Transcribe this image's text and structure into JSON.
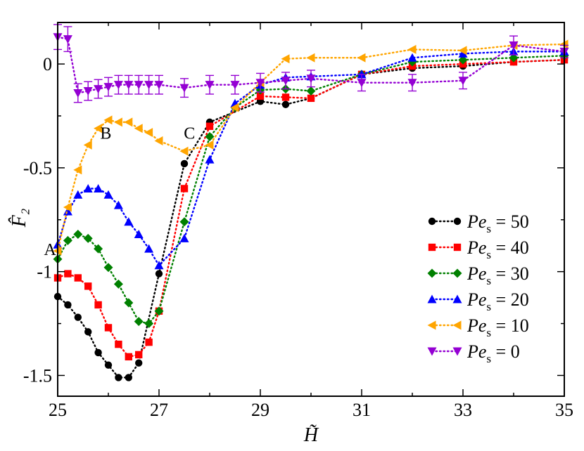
{
  "chart_data": {
    "type": "line",
    "title": "",
    "xlabel": "H̃",
    "ylabel": "F̂₂",
    "xlim": [
      25,
      35
    ],
    "ylim": [
      -1.6,
      0.2
    ],
    "x_ticks": [
      25,
      27,
      29,
      31,
      33,
      35
    ],
    "x_tick_labels": [
      "25",
      "27",
      "29",
      "31",
      "33",
      "35"
    ],
    "y_ticks": [
      0,
      -0.5,
      -1,
      -1.5
    ],
    "y_tick_labels": [
      "0",
      "-0.5",
      "-1",
      "-1.5"
    ],
    "annotations": [
      {
        "text": "A",
        "x": 24.85,
        "y": -0.92
      },
      {
        "text": "B",
        "x": 25.95,
        "y": -0.36
      },
      {
        "text": "C",
        "x": 27.6,
        "y": -0.36
      }
    ],
    "legend": {
      "position": "center-right",
      "prefix": "Pe",
      "subscript": "s"
    },
    "series": [
      {
        "name": "50",
        "label_eq": " = 50",
        "color": "#000000",
        "marker": "circle",
        "x": [
          25,
          25.2,
          25.4,
          25.6,
          25.8,
          26,
          26.2,
          26.4,
          26.6,
          27,
          27.5,
          28,
          29,
          29.5,
          30,
          31,
          32,
          33,
          34,
          35
        ],
        "y": [
          -1.12,
          -1.16,
          -1.22,
          -1.29,
          -1.39,
          -1.45,
          -1.51,
          -1.51,
          -1.44,
          -1.01,
          -0.48,
          -0.28,
          -0.18,
          -0.195,
          -0.165,
          -0.05,
          -0.02,
          -0.01,
          0.01,
          0.02
        ]
      },
      {
        "name": "40",
        "label_eq": " = 40",
        "color": "#ff0000",
        "marker": "square",
        "x": [
          25,
          25.2,
          25.4,
          25.6,
          25.8,
          26,
          26.2,
          26.4,
          26.6,
          26.8,
          27,
          27.5,
          28,
          29,
          29.5,
          30,
          31,
          32,
          33,
          34,
          35
        ],
        "y": [
          -1.03,
          -1.01,
          -1.03,
          -1.07,
          -1.16,
          -1.27,
          -1.35,
          -1.41,
          -1.4,
          -1.34,
          -1.19,
          -0.6,
          -0.3,
          -0.155,
          -0.16,
          -0.165,
          -0.05,
          -0.01,
          0.0,
          0.01,
          0.02
        ]
      },
      {
        "name": "30",
        "label_eq": " = 30",
        "color": "#008000",
        "marker": "diamond",
        "x": [
          25,
          25.2,
          25.4,
          25.6,
          25.8,
          26,
          26.2,
          26.4,
          26.6,
          26.8,
          27,
          27.5,
          28,
          28.5,
          29,
          29.5,
          30,
          31,
          32,
          33,
          34,
          35
        ],
        "y": [
          -0.94,
          -0.85,
          -0.82,
          -0.84,
          -0.89,
          -0.98,
          -1.06,
          -1.15,
          -1.24,
          -1.25,
          -1.19,
          -0.76,
          -0.35,
          -0.21,
          -0.125,
          -0.12,
          -0.13,
          -0.05,
          0.01,
          0.02,
          0.03,
          0.04
        ]
      },
      {
        "name": "20",
        "label_eq": " = 20",
        "color": "#0000ff",
        "marker": "triangle-up",
        "x": [
          25,
          25.2,
          25.4,
          25.6,
          25.8,
          26,
          26.2,
          26.4,
          26.6,
          26.8,
          27,
          27.5,
          28,
          28.5,
          29,
          29.5,
          30,
          31,
          32,
          33,
          34,
          35
        ],
        "y": [
          -0.87,
          -0.71,
          -0.63,
          -0.6,
          -0.6,
          -0.63,
          -0.68,
          -0.76,
          -0.82,
          -0.89,
          -0.97,
          -0.84,
          -0.46,
          -0.19,
          -0.1,
          -0.065,
          -0.06,
          -0.05,
          0.03,
          0.05,
          0.06,
          0.06
        ]
      },
      {
        "name": "10",
        "label_eq": " = 10",
        "color": "#ffa500",
        "marker": "triangle-left",
        "x": [
          25,
          25.2,
          25.4,
          25.6,
          25.8,
          26,
          26.2,
          26.4,
          26.6,
          26.8,
          27,
          27.5,
          28,
          28.5,
          29,
          29.5,
          30,
          31,
          32,
          33,
          34,
          35
        ],
        "y": [
          -0.9,
          -0.69,
          -0.51,
          -0.39,
          -0.31,
          -0.27,
          -0.28,
          -0.28,
          -0.31,
          -0.33,
          -0.37,
          -0.42,
          -0.39,
          -0.21,
          -0.09,
          0.025,
          0.03,
          0.03,
          0.07,
          0.065,
          0.09,
          0.095
        ]
      },
      {
        "name": "0",
        "label_eq": " = 0",
        "color": "#9400d3",
        "marker": "triangle-down",
        "x": [
          25,
          25.2,
          25.4,
          25.6,
          25.8,
          26,
          26.2,
          26.4,
          26.6,
          26.8,
          27,
          27.5,
          28,
          28.5,
          29,
          29.5,
          30,
          31,
          32,
          33,
          34,
          35
        ],
        "y": [
          0.13,
          0.12,
          -0.14,
          -0.13,
          -0.12,
          -0.11,
          -0.1,
          -0.1,
          -0.1,
          -0.1,
          -0.1,
          -0.115,
          -0.1,
          -0.1,
          -0.09,
          -0.08,
          -0.07,
          -0.09,
          -0.09,
          -0.08,
          0.09,
          0.06
        ],
        "err": [
          0.06,
          0.06,
          0.045,
          0.045,
          0.045,
          0.045,
          0.045,
          0.045,
          0.045,
          0.045,
          0.045,
          0.045,
          0.045,
          0.045,
          0.045,
          0.04,
          0.04,
          0.04,
          0.04,
          0.04,
          0.045,
          0.03
        ]
      }
    ]
  }
}
